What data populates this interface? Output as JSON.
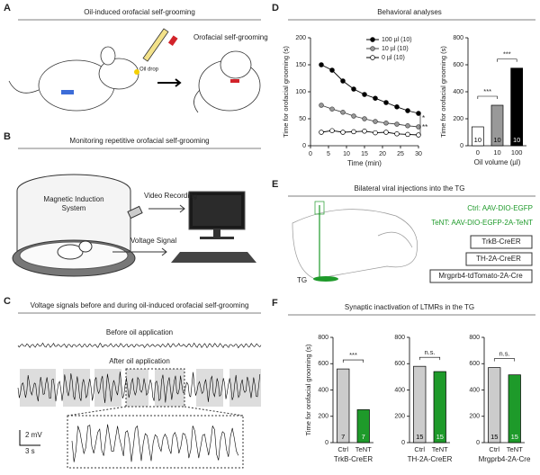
{
  "panels": {
    "A": {
      "letter": "A",
      "title": "Oil-induced orofacial self-grooming",
      "oil_drop": "Oil drop",
      "right_label": "Orofacial self-grooming"
    },
    "B": {
      "letter": "B",
      "title": "Monitoring repetitive orofacial self-grooming",
      "system": [
        "Magnetic Induction",
        "System"
      ],
      "video": "Video Recording",
      "voltage": "Voltage Signal"
    },
    "C": {
      "letter": "C",
      "title": "Voltage signals before and during oil-induced orofacial self-grooming",
      "before": "Before oil application",
      "after": "After oil application",
      "scale_y": "2 mV",
      "scale_x": "3 s"
    },
    "D": {
      "letter": "D",
      "title": "Behavioral analyses"
    },
    "E": {
      "letter": "E",
      "title": "Bilateral viral injections into the TG",
      "ctrl": "Ctrl: AAV-DIO-EGFP",
      "tent": "TeNT: AAV-DIO-EGFP-2A-TeNT",
      "lines": [
        "TrkB-CreER",
        "TH-2A-CreER",
        "Mrgprb4-tdTomato-2A-Cre"
      ],
      "tg": "TG"
    },
    "F": {
      "letter": "F",
      "title": "Synaptic inactivation of LTMRs in the TG"
    }
  },
  "chart_data": [
    {
      "type": "line",
      "ylabel": "Time for orofacial grooming (s)",
      "xlabel": "Time (min)",
      "x": [
        3,
        6,
        9,
        12,
        15,
        18,
        21,
        24,
        27,
        30
      ],
      "xlim": [
        0,
        30
      ],
      "xticks": [
        0,
        5,
        10,
        15,
        20,
        25,
        30
      ],
      "ylim": [
        0,
        200
      ],
      "yticks": [
        0,
        50,
        100,
        150,
        200
      ],
      "legend": "upper right",
      "series": [
        {
          "name": "100 µl (10)",
          "color": "#000000",
          "marker_fill": "#000000",
          "values": [
            150,
            140,
            120,
            105,
            95,
            88,
            80,
            72,
            65,
            60
          ]
        },
        {
          "name": "10 µl (10)",
          "color": "#444444",
          "marker_fill": "#999999",
          "values": [
            75,
            68,
            62,
            55,
            50,
            45,
            42,
            40,
            37,
            35
          ]
        },
        {
          "name": "0 µl (10)",
          "color": "#000000",
          "marker_fill": "#ffffff",
          "values": [
            25,
            28,
            25,
            26,
            27,
            24,
            25,
            22,
            21,
            20
          ]
        }
      ],
      "significance": [
        "*",
        "**"
      ]
    },
    {
      "type": "bar",
      "ylabel": "Time for orofacial grooming (s)",
      "xlabel": "Oil volume (µl)",
      "categories": [
        "0",
        "10",
        "100"
      ],
      "values": [
        140,
        300,
        575
      ],
      "colors": [
        "#ffffff",
        "#999999",
        "#000000"
      ],
      "n_labels": [
        "10",
        "10",
        "10"
      ],
      "significance": [
        "***",
        "***"
      ],
      "ylim": [
        0,
        800
      ],
      "yticks": [
        0,
        200,
        400,
        600,
        800
      ]
    },
    {
      "type": "bar",
      "ylabel": "Time for orofacial grooming (s)",
      "xlabel": "TrkB-CreER",
      "categories": [
        "Ctrl",
        "TeNT"
      ],
      "values": [
        560,
        250
      ],
      "colors": [
        "#cccccc",
        "#1e9a2a"
      ],
      "n_labels": [
        "7",
        "7"
      ],
      "significance": [
        "***"
      ],
      "ylim": [
        0,
        800
      ],
      "yticks": [
        0,
        200,
        400,
        600,
        800
      ]
    },
    {
      "type": "bar",
      "xlabel": "TH-2A-CreER",
      "categories": [
        "Ctrl",
        "TeNT"
      ],
      "values": [
        580,
        540
      ],
      "colors": [
        "#cccccc",
        "#1e9a2a"
      ],
      "n_labels": [
        "15",
        "15"
      ],
      "significance": [
        "n.s."
      ],
      "ylim": [
        0,
        800
      ],
      "yticks": [
        0,
        200,
        400,
        600,
        800
      ]
    },
    {
      "type": "bar",
      "xlabel": "Mrgprb4-2A-Cre",
      "categories": [
        "Ctrl",
        "TeNT"
      ],
      "values": [
        570,
        515
      ],
      "colors": [
        "#cccccc",
        "#1e9a2a"
      ],
      "n_labels": [
        "15",
        "15"
      ],
      "significance": [
        "n.s."
      ],
      "ylim": [
        0,
        800
      ],
      "yticks": [
        0,
        200,
        400,
        600,
        800
      ]
    }
  ]
}
